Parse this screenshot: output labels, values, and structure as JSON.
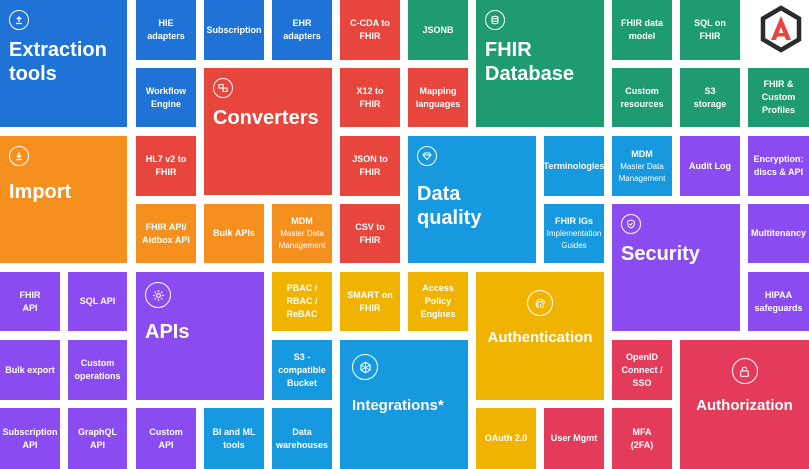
{
  "colors": {
    "blue": "#1f73d6",
    "red": "#e8453c",
    "green": "#1f9b72",
    "orange": "#f5901f",
    "sky": "#1699df",
    "purple": "#8a4cf0",
    "yellow": "#f0b400",
    "crimson": "#e43b5a",
    "pink": "#e43b5a"
  },
  "sections": {
    "extraction": {
      "title": "Extraction\ntools",
      "icon": "upload-icon"
    },
    "import": {
      "title": "Import",
      "icon": "download-icon"
    },
    "converters": {
      "title": "Converters",
      "icon": "convert-icon"
    },
    "database": {
      "title": "FHIR\nDatabase",
      "icon": "database-icon"
    },
    "data_quality": {
      "title": "Data\nquality",
      "icon": "diamond-icon"
    },
    "security": {
      "title": "Security",
      "icon": "shield-icon"
    },
    "apis": {
      "title": "APIs",
      "icon": "gear-icon"
    },
    "integrations": {
      "title": "Integrations*",
      "icon": "network-icon"
    },
    "authentication": {
      "title": "Authentication",
      "icon": "fingerprint-icon"
    },
    "authorization": {
      "title": "Authorization",
      "icon": "lock-icon"
    }
  },
  "tiles": {
    "hie_adapters": "HIE\nadapters",
    "subscription": "Subscription",
    "ehr_adapters": "EHR\nadapters",
    "workflow_engine": "Workflow\nEngine",
    "hl7v2": "HL7 v2 to\nFHIR",
    "fhir_api_aidbox": "FHIR API/\nAidbox API",
    "bulk_apis": "Bulk APIs",
    "mdm_title": "MDM",
    "mdm_sub": "Master Data\nManagement",
    "ccda": "C-CDA to\nFHIR",
    "jsonb": "JSONB",
    "x12": "X12 to\nFHIR",
    "mapping": "Mapping\nlanguages",
    "json_to_fhir": "JSON to\nFHIR",
    "csv_to_fhir": "CSV to\nFHIR",
    "fhir_data_model": "FHIR data\nmodel",
    "sql_on_fhir": "SQL on\nFHIR",
    "custom_resources": "Custom\nresources",
    "s3_storage": "S3\nstorage",
    "fhir_custom_profiles": "FHIR &\nCustom\nProfiles",
    "terminologies": "Terminologies",
    "fhir_igs_title": "FHIR IGs",
    "fhir_igs_sub": "Implementation\nGuides",
    "audit_log": "Audit Log",
    "encryption": "Encryption:\ndiscs & API",
    "multitenancy": "Multitenancy",
    "hipaa": "HIPAA\nsafeguards",
    "fhir_api": "FHIR\nAPI",
    "sql_api": "SQL API",
    "bulk_export": "Bulk export",
    "custom_operations": "Custom\noperations",
    "subscription_api": "Subscription\nAPI",
    "graphql_api": "GraphQL\nAPI",
    "custom_api": "Custom\nAPI",
    "bi_ml": "BI and ML\ntools",
    "data_warehouses": "Data\nwarehouses",
    "pbac": "PBAC /\nRBAC /\nReBAC",
    "s3_bucket": "S3 -\ncompatible\nBucket",
    "smart_on_fhir": "SMART on\nFHIR",
    "access_policy": "Access\nPolicy\nEngines",
    "oauth": "OAuth 2.0",
    "user_mgmt": "User Mgmt",
    "openid": "OpenID\nConnect /\nSSO",
    "mfa": "MFA\n(2FA)"
  },
  "logo": {
    "name": "aidbox-logo-icon",
    "letter": "A"
  }
}
